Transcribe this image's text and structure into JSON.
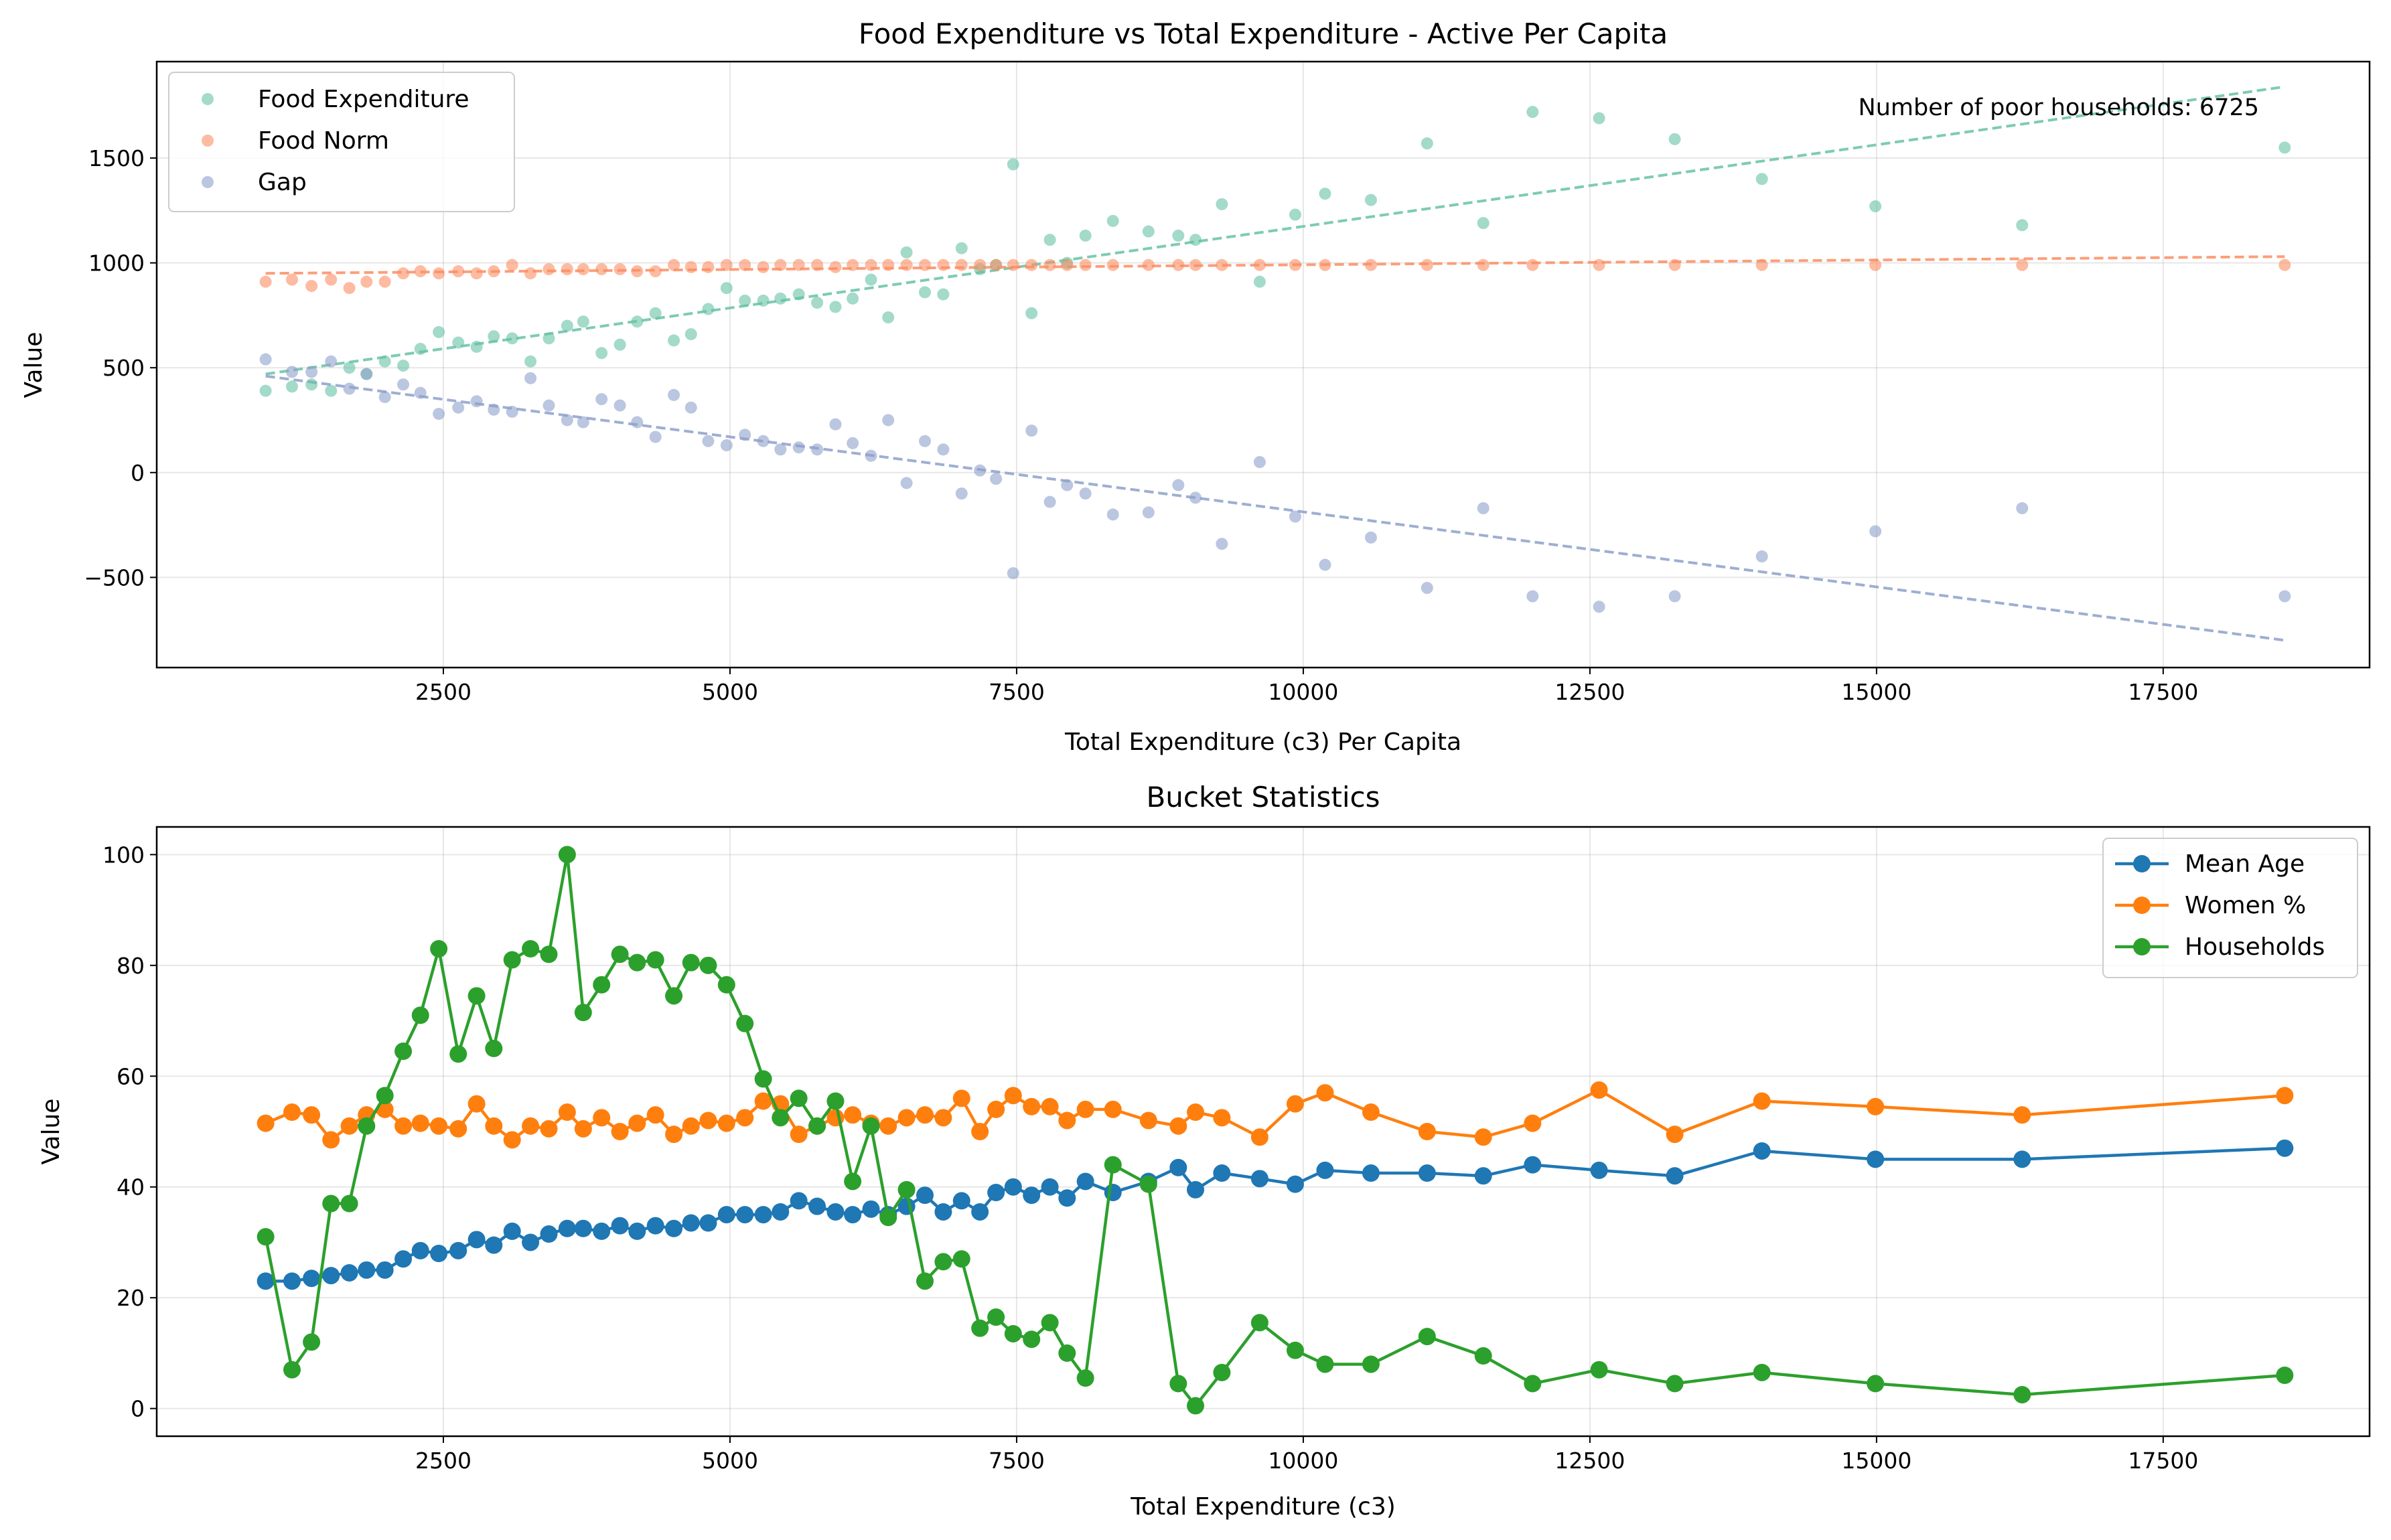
{
  "chart_data": [
    {
      "type": "scatter",
      "title": "Food Expenditure vs Total Expenditure - Active Per Capita",
      "xlabel": "Total Expenditure (c3) Per Capita",
      "ylabel": "Value",
      "xlim": [
        0,
        19300
      ],
      "ylim": [
        -930,
        1960
      ],
      "xticks": [
        2500,
        5000,
        7500,
        10000,
        12500,
        15000,
        17500
      ],
      "yticks": [
        -500,
        0,
        500,
        1000,
        1500
      ],
      "grid": true,
      "legend_position": "upper-left",
      "annotation": "Number of poor households: 6725",
      "x": [
        950,
        1180,
        1350,
        1520,
        1680,
        1830,
        1990,
        2150,
        2300,
        2460,
        2630,
        2790,
        2940,
        3100,
        3260,
        3420,
        3580,
        3720,
        3880,
        4040,
        4190,
        4350,
        4510,
        4660,
        4810,
        4970,
        5130,
        5290,
        5440,
        5600,
        5760,
        5920,
        6070,
        6230,
        6380,
        6540,
        6700,
        6860,
        7020,
        7180,
        7320,
        7470,
        7630,
        7790,
        7940,
        8100,
        8340,
        8650,
        8910,
        9060,
        9290,
        9620,
        9930,
        10190,
        10590,
        11080,
        11570,
        12000,
        12580,
        13240,
        14000,
        14990,
        16270,
        18560
      ],
      "series": [
        {
          "name": "Food Expenditure",
          "color": "#66c2a5",
          "trend": [
            470,
            1840
          ],
          "values": [
            390,
            410,
            420,
            390,
            500,
            470,
            530,
            510,
            590,
            670,
            620,
            600,
            650,
            640,
            530,
            640,
            700,
            720,
            570,
            610,
            720,
            760,
            630,
            660,
            780,
            880,
            820,
            820,
            830,
            850,
            810,
            790,
            830,
            920,
            740,
            1050,
            860,
            850,
            1070,
            970,
            990,
            1470,
            760,
            1110,
            1000,
            1130,
            1200,
            1150,
            1130,
            1110,
            1280,
            910,
            1230,
            1330,
            1300,
            1570,
            1190,
            1720,
            1690,
            1590,
            1400,
            1270,
            1180,
            1550
          ]
        },
        {
          "name": "Food Norm",
          "color": "#fc8d62",
          "trend": [
            950,
            1030
          ],
          "values": [
            910,
            920,
            890,
            920,
            880,
            910,
            910,
            950,
            960,
            950,
            960,
            950,
            960,
            990,
            950,
            970,
            970,
            970,
            970,
            970,
            960,
            960,
            990,
            980,
            980,
            990,
            990,
            980,
            990,
            990,
            990,
            980,
            990,
            990,
            990,
            990,
            990,
            990,
            990,
            990,
            990,
            990,
            990,
            990,
            990,
            990,
            990,
            990,
            990,
            990,
            990,
            990,
            990,
            990,
            990,
            990,
            990,
            990,
            990,
            990,
            990,
            990,
            990,
            990
          ]
        },
        {
          "name": "Gap",
          "color": "#8da0cb",
          "trend": [
            460,
            -800
          ],
          "values": [
            540,
            480,
            480,
            530,
            400,
            470,
            360,
            420,
            380,
            280,
            310,
            340,
            300,
            290,
            450,
            320,
            250,
            240,
            350,
            320,
            240,
            170,
            370,
            310,
            150,
            130,
            180,
            150,
            110,
            120,
            110,
            230,
            140,
            80,
            250,
            -50,
            150,
            110,
            -100,
            10,
            -30,
            -480,
            200,
            -140,
            -60,
            -100,
            -200,
            -190,
            -60,
            -120,
            -340,
            50,
            -210,
            -440,
            -310,
            -550,
            -170,
            -590,
            -640,
            -590,
            -400,
            -280,
            -170,
            -590
          ]
        }
      ]
    },
    {
      "type": "line",
      "title": "Bucket Statistics",
      "xlabel": "Total Expenditure (c3)",
      "ylabel": "Value",
      "xlim": [
        0,
        19300
      ],
      "ylim": [
        -5,
        105
      ],
      "xticks": [
        2500,
        5000,
        7500,
        10000,
        12500,
        15000,
        17500
      ],
      "yticks": [
        0,
        20,
        40,
        60,
        80,
        100
      ],
      "grid": true,
      "legend_position": "upper-right",
      "x": [
        950,
        1180,
        1350,
        1520,
        1680,
        1830,
        1990,
        2150,
        2300,
        2460,
        2630,
        2790,
        2940,
        3100,
        3260,
        3420,
        3580,
        3720,
        3880,
        4040,
        4190,
        4350,
        4510,
        4660,
        4810,
        4970,
        5130,
        5290,
        5440,
        5600,
        5760,
        5920,
        6070,
        6230,
        6380,
        6540,
        6700,
        6860,
        7020,
        7180,
        7320,
        7470,
        7630,
        7790,
        7940,
        8100,
        8340,
        8650,
        8910,
        9060,
        9290,
        9620,
        9930,
        10190,
        10590,
        11080,
        11570,
        12000,
        12580,
        13240,
        14000,
        14990,
        16270,
        18560
      ],
      "series": [
        {
          "name": "Mean Age",
          "color": "#1f77b4",
          "values": [
            23,
            23,
            23.5,
            24,
            24.5,
            25,
            25,
            27,
            28.5,
            28,
            28.5,
            30.5,
            29.5,
            32,
            30,
            31.5,
            32.5,
            32.5,
            32,
            33,
            32,
            33,
            32.5,
            33.5,
            33.5,
            35,
            35,
            35,
            35.5,
            37.5,
            36.5,
            35.5,
            35,
            36,
            35,
            36.5,
            38.5,
            35.5,
            37.5,
            35.5,
            39,
            40,
            38.5,
            40,
            38,
            41,
            39,
            41,
            43.5,
            39.5,
            42.5,
            41.5,
            40.5,
            43,
            42.5,
            42.5,
            42,
            44,
            43,
            42,
            46.5,
            45,
            45,
            47
          ]
        },
        {
          "name": "Women %",
          "color": "#ff7f0e",
          "values": [
            51.5,
            53.5,
            53,
            48.5,
            51,
            53,
            54,
            51,
            51.5,
            51,
            50.5,
            55,
            51,
            48.5,
            51,
            50.5,
            53.5,
            50.5,
            52.5,
            50,
            51.5,
            53,
            49.5,
            51,
            52,
            51.5,
            52.5,
            55.5,
            55,
            49.5,
            51,
            52.5,
            53,
            51.5,
            51,
            52.5,
            53,
            52.5,
            56,
            50,
            54,
            56.5,
            54.5,
            54.5,
            52,
            54,
            54,
            52,
            51,
            53.5,
            52.5,
            49,
            55,
            57,
            53.5,
            50,
            49,
            51.5,
            57.5,
            49.5,
            55.5,
            54.5,
            53,
            56.5
          ]
        },
        {
          "name": "Households",
          "color": "#2ca02c",
          "values": [
            31,
            7,
            12,
            37,
            37,
            51,
            56.5,
            64.5,
            71,
            83,
            64,
            74.5,
            65,
            81,
            83,
            82,
            100,
            71.5,
            76.5,
            82,
            80.5,
            81,
            74.5,
            80.5,
            80,
            76.5,
            69.5,
            59.5,
            52.5,
            56,
            51,
            55.5,
            41,
            51,
            34.5,
            39.5,
            23,
            26.5,
            27,
            14.5,
            16.5,
            13.5,
            12.5,
            15.5,
            10,
            5.5,
            44,
            40.5,
            4.5,
            0.5,
            6.5,
            15.5,
            10.5,
            8,
            8,
            13,
            9.5,
            4.5,
            7,
            4.5,
            6.5,
            4.5,
            2.5,
            6
          ]
        }
      ]
    }
  ]
}
